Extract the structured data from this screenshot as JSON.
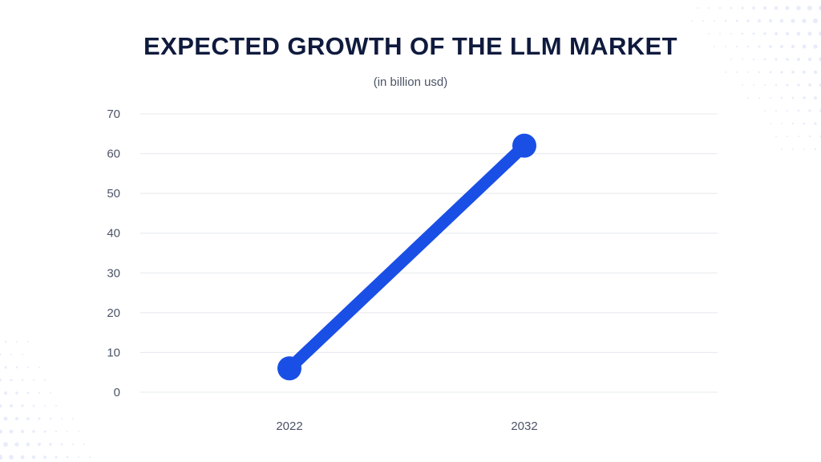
{
  "chart_data": {
    "type": "line",
    "title": "EXPECTED GROWTH OF THE LLM MARKET",
    "subtitle": "(in billion usd)",
    "xlabel": "",
    "ylabel": "",
    "categories": [
      "2022",
      "2032"
    ],
    "series": [
      {
        "values": [
          6,
          62
        ]
      }
    ],
    "ylim": [
      0,
      70
    ],
    "yticks": [
      "0",
      "10",
      "20",
      "30",
      "40",
      "50",
      "60",
      "70"
    ],
    "grid": true,
    "legend": "none"
  },
  "colors": {
    "line": "#1a4fe6",
    "title": "#0f1a3d",
    "ticks": "#4b5366",
    "grid": "#e6e8ee",
    "dots": "#e8ecfa"
  }
}
